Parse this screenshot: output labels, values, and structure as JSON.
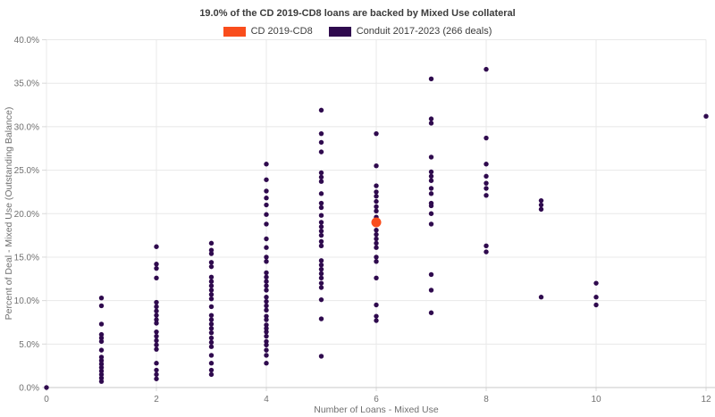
{
  "title": "19.0% of the CD 2019-CD8 loans are backed by Mixed Use collateral",
  "legend": {
    "items": [
      {
        "label": "CD 2019-CD8",
        "color": "#f94d1c"
      },
      {
        "label": "Conduit 2017-2023 (266 deals)",
        "color": "#2f0a4e"
      }
    ]
  },
  "chart_data": {
    "type": "scatter",
    "title": "19.0% of the CD 2019-CD8 loans are backed by Mixed Use collateral",
    "xlabel": "Number of Loans - Mixed Use",
    "ylabel": "Percent of Deal - Mixed Use (Outstanding Balance)",
    "xlim": [
      0,
      12
    ],
    "ylim": [
      0,
      40
    ],
    "grid": true,
    "legend_position": "top-center",
    "x_ticks": [
      0,
      2,
      4,
      6,
      8,
      10,
      12
    ],
    "x_tick_labels": [
      "0",
      "2",
      "4",
      "6",
      "8",
      "10",
      "12"
    ],
    "y_ticks": [
      0,
      5,
      10,
      15,
      20,
      25,
      30,
      35,
      40
    ],
    "y_tick_labels": [
      "0.0%",
      "5.0%",
      "10.0%",
      "15.0%",
      "20.0%",
      "25.0%",
      "30.0%",
      "35.0%",
      "40.0%"
    ],
    "series": [
      {
        "name": "Conduit 2017-2023 (266 deals)",
        "color": "#2f0a4e",
        "marker_radius": 2.7,
        "points": [
          [
            0,
            0.0
          ],
          [
            1,
            10.3
          ],
          [
            1,
            9.4
          ],
          [
            1,
            7.3
          ],
          [
            1,
            6.1
          ],
          [
            1,
            5.7
          ],
          [
            1,
            5.3
          ],
          [
            1,
            4.3
          ],
          [
            1,
            3.5
          ],
          [
            1,
            3.1
          ],
          [
            1,
            2.7
          ],
          [
            1,
            2.3
          ],
          [
            1,
            1.9
          ],
          [
            1,
            1.5
          ],
          [
            1,
            1.1
          ],
          [
            1,
            0.7
          ],
          [
            2,
            16.2
          ],
          [
            2,
            14.2
          ],
          [
            2,
            13.7
          ],
          [
            2,
            12.6
          ],
          [
            2,
            9.8
          ],
          [
            2,
            9.3
          ],
          [
            2,
            8.8
          ],
          [
            2,
            8.3
          ],
          [
            2,
            7.8
          ],
          [
            2,
            7.4
          ],
          [
            2,
            6.4
          ],
          [
            2,
            5.9
          ],
          [
            2,
            5.4
          ],
          [
            2,
            4.9
          ],
          [
            2,
            4.4
          ],
          [
            2,
            2.8
          ],
          [
            2,
            2.0
          ],
          [
            2,
            1.5
          ],
          [
            2,
            1.0
          ],
          [
            3,
            16.6
          ],
          [
            3,
            15.8
          ],
          [
            3,
            15.4
          ],
          [
            3,
            14.4
          ],
          [
            3,
            13.9
          ],
          [
            3,
            12.7
          ],
          [
            3,
            12.2
          ],
          [
            3,
            11.7
          ],
          [
            3,
            11.2
          ],
          [
            3,
            10.7
          ],
          [
            3,
            10.2
          ],
          [
            3,
            9.3
          ],
          [
            3,
            8.3
          ],
          [
            3,
            7.8
          ],
          [
            3,
            7.3
          ],
          [
            3,
            6.8
          ],
          [
            3,
            6.3
          ],
          [
            3,
            5.7
          ],
          [
            3,
            5.2
          ],
          [
            3,
            4.7
          ],
          [
            3,
            3.7
          ],
          [
            3,
            2.8
          ],
          [
            3,
            2.0
          ],
          [
            3,
            1.5
          ],
          [
            4,
            25.7
          ],
          [
            4,
            23.9
          ],
          [
            4,
            22.6
          ],
          [
            4,
            21.8
          ],
          [
            4,
            21.0
          ],
          [
            4,
            19.9
          ],
          [
            4,
            18.8
          ],
          [
            4,
            17.1
          ],
          [
            4,
            16.1
          ],
          [
            4,
            15.0
          ],
          [
            4,
            14.5
          ],
          [
            4,
            13.2
          ],
          [
            4,
            12.7
          ],
          [
            4,
            12.2
          ],
          [
            4,
            11.7
          ],
          [
            4,
            11.2
          ],
          [
            4,
            10.4
          ],
          [
            4,
            9.9
          ],
          [
            4,
            9.4
          ],
          [
            4,
            8.9
          ],
          [
            4,
            8.2
          ],
          [
            4,
            7.8
          ],
          [
            4,
            7.2
          ],
          [
            4,
            6.8
          ],
          [
            4,
            6.4
          ],
          [
            4,
            5.9
          ],
          [
            4,
            5.3
          ],
          [
            4,
            4.9
          ],
          [
            4,
            4.3
          ],
          [
            4,
            3.7
          ],
          [
            4,
            2.8
          ],
          [
            5,
            31.9
          ],
          [
            5,
            29.2
          ],
          [
            5,
            28.2
          ],
          [
            5,
            27.1
          ],
          [
            5,
            24.7
          ],
          [
            5,
            24.2
          ],
          [
            5,
            23.7
          ],
          [
            5,
            22.3
          ],
          [
            5,
            21.2
          ],
          [
            5,
            20.7
          ],
          [
            5,
            19.8
          ],
          [
            5,
            19.0
          ],
          [
            5,
            18.5
          ],
          [
            5,
            18.0
          ],
          [
            5,
            17.5
          ],
          [
            5,
            16.8
          ],
          [
            5,
            16.3
          ],
          [
            5,
            14.6
          ],
          [
            5,
            14.1
          ],
          [
            5,
            13.6
          ],
          [
            5,
            13.1
          ],
          [
            5,
            12.6
          ],
          [
            5,
            12.0
          ],
          [
            5,
            11.5
          ],
          [
            5,
            10.1
          ],
          [
            5,
            7.9
          ],
          [
            5,
            3.6
          ],
          [
            6,
            29.2
          ],
          [
            6,
            25.5
          ],
          [
            6,
            23.2
          ],
          [
            6,
            22.5
          ],
          [
            6,
            22.0
          ],
          [
            6,
            21.4
          ],
          [
            6,
            20.8
          ],
          [
            6,
            20.3
          ],
          [
            6,
            19.6
          ],
          [
            6,
            18.1
          ],
          [
            6,
            17.6
          ],
          [
            6,
            17.1
          ],
          [
            6,
            16.6
          ],
          [
            6,
            16.1
          ],
          [
            6,
            15.0
          ],
          [
            6,
            14.5
          ],
          [
            6,
            12.6
          ],
          [
            6,
            9.5
          ],
          [
            6,
            8.2
          ],
          [
            6,
            7.7
          ],
          [
            7,
            35.5
          ],
          [
            7,
            30.9
          ],
          [
            7,
            30.4
          ],
          [
            7,
            26.5
          ],
          [
            7,
            24.8
          ],
          [
            7,
            24.3
          ],
          [
            7,
            23.8
          ],
          [
            7,
            22.9
          ],
          [
            7,
            22.3
          ],
          [
            7,
            21.2
          ],
          [
            7,
            20.9
          ],
          [
            7,
            20.0
          ],
          [
            7,
            18.8
          ],
          [
            7,
            13.0
          ],
          [
            7,
            11.2
          ],
          [
            7,
            8.6
          ],
          [
            8,
            36.6
          ],
          [
            8,
            28.7
          ],
          [
            8,
            25.7
          ],
          [
            8,
            24.3
          ],
          [
            8,
            23.5
          ],
          [
            8,
            22.9
          ],
          [
            8,
            22.1
          ],
          [
            8,
            16.3
          ],
          [
            8,
            15.6
          ],
          [
            9,
            21.5
          ],
          [
            9,
            21.0
          ],
          [
            9,
            20.5
          ],
          [
            9,
            10.4
          ],
          [
            10,
            12.0
          ],
          [
            10,
            10.4
          ],
          [
            10,
            9.5
          ],
          [
            12,
            31.2
          ]
        ]
      },
      {
        "name": "CD 2019-CD8",
        "color": "#f94d1c",
        "marker_radius": 5.5,
        "points": [
          [
            6,
            19.0
          ]
        ]
      }
    ]
  }
}
